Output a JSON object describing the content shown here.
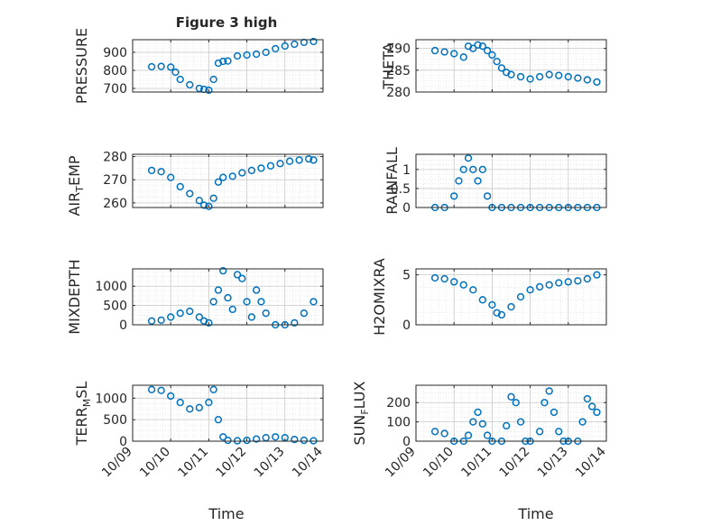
{
  "figure": {
    "title": "Figure 3 high",
    "xlabel": "Time",
    "xticks": [
      "10/09",
      "10/10",
      "10/11",
      "10/12",
      "10/13",
      "10/14"
    ]
  },
  "chart_data": [
    {
      "type": "scatter",
      "ylabel": "PRESSURE",
      "xlim": [
        "10/09",
        "10/14"
      ],
      "ylim": [
        680,
        970
      ],
      "yticks": [
        700,
        800,
        900
      ],
      "grid": true,
      "marker_color": "#0072BD",
      "x": [
        "10/09 12:00",
        "10/09 18:00",
        "10/10 00:00",
        "10/10 03:00",
        "10/10 06:00",
        "10/10 12:00",
        "10/10 18:00",
        "10/10 21:00",
        "10/11 00:00",
        "10/11 03:00",
        "10/11 06:00",
        "10/11 09:00",
        "10/11 12:00",
        "10/11 18:00",
        "10/12 00:00",
        "10/12 06:00",
        "10/12 12:00",
        "10/12 18:00",
        "10/13 00:00",
        "10/13 06:00",
        "10/13 12:00",
        "10/13 18:00"
      ],
      "y": [
        820,
        822,
        818,
        790,
        750,
        720,
        700,
        695,
        690,
        750,
        840,
        850,
        852,
        880,
        885,
        890,
        900,
        920,
        935,
        945,
        955,
        960
      ]
    },
    {
      "type": "scatter",
      "ylabel": "THETA",
      "xlim": [
        "10/09",
        "10/14"
      ],
      "ylim": [
        280,
        292
      ],
      "yticks": [
        280,
        285,
        290
      ],
      "grid": true,
      "marker_color": "#0072BD",
      "x": [
        "10/09 12:00",
        "10/09 18:00",
        "10/10 00:00",
        "10/10 06:00",
        "10/10 09:00",
        "10/10 12:00",
        "10/10 15:00",
        "10/10 18:00",
        "10/10 21:00",
        "10/11 00:00",
        "10/11 03:00",
        "10/11 06:00",
        "10/11 09:00",
        "10/11 12:00",
        "10/11 18:00",
        "10/12 00:00",
        "10/12 06:00",
        "10/12 12:00",
        "10/12 18:00",
        "10/13 00:00",
        "10/13 06:00",
        "10/13 12:00",
        "10/13 18:00"
      ],
      "y": [
        289.5,
        289.2,
        288.8,
        288.0,
        290.5,
        290.0,
        290.8,
        290.5,
        289.5,
        288.5,
        287.0,
        285.5,
        284.5,
        284.0,
        283.5,
        283.0,
        283.5,
        284.0,
        283.8,
        283.5,
        283.2,
        282.8,
        282.3
      ]
    },
    {
      "type": "scatter",
      "ylabel": "AIR_TEMP",
      "xlim": [
        "10/09",
        "10/14"
      ],
      "ylim": [
        258,
        281
      ],
      "yticks": [
        260,
        270,
        280
      ],
      "grid": true,
      "marker_color": "#0072BD",
      "x": [
        "10/09 12:00",
        "10/09 18:00",
        "10/10 00:00",
        "10/10 06:00",
        "10/10 12:00",
        "10/10 18:00",
        "10/10 21:00",
        "10/11 00:00",
        "10/11 03:00",
        "10/11 06:00",
        "10/11 09:00",
        "10/11 15:00",
        "10/11 21:00",
        "10/12 03:00",
        "10/12 09:00",
        "10/12 15:00",
        "10/12 21:00",
        "10/13 03:00",
        "10/13 09:00",
        "10/13 15:00",
        "10/13 18:00"
      ],
      "y": [
        274,
        273.5,
        271,
        267,
        264,
        261,
        259,
        258.5,
        262,
        269,
        271,
        271.5,
        273,
        274,
        275,
        276,
        277,
        278,
        278.5,
        279,
        278.5
      ]
    },
    {
      "type": "scatter",
      "ylabel": "RAINFALL",
      "xlim": [
        "10/09",
        "10/14"
      ],
      "ylim": [
        0,
        1.4
      ],
      "yticks": [
        0,
        0.5,
        1
      ],
      "ytick_labels": [
        "0",
        "0.5",
        "1"
      ],
      "grid": true,
      "marker_color": "#0072BD",
      "x": [
        "10/09 12:00",
        "10/09 18:00",
        "10/10 00:00",
        "10/10 03:00",
        "10/10 06:00",
        "10/10 09:00",
        "10/10 12:00",
        "10/10 15:00",
        "10/10 18:00",
        "10/10 21:00",
        "10/11 00:00",
        "10/11 06:00",
        "10/11 12:00",
        "10/11 18:00",
        "10/12 00:00",
        "10/12 06:00",
        "10/12 12:00",
        "10/12 18:00",
        "10/13 00:00",
        "10/13 06:00",
        "10/13 12:00",
        "10/13 18:00"
      ],
      "y": [
        0,
        0,
        0.3,
        0.7,
        1.0,
        1.3,
        1.0,
        0.7,
        1.0,
        0.3,
        0,
        0,
        0,
        0,
        0,
        0,
        0,
        0,
        0,
        0,
        0,
        0
      ]
    },
    {
      "type": "scatter",
      "ylabel": "MIXDEPTH",
      "xlim": [
        "10/09",
        "10/14"
      ],
      "ylim": [
        0,
        1450
      ],
      "yticks": [
        0,
        500,
        1000
      ],
      "grid": true,
      "marker_color": "#0072BD",
      "x": [
        "10/09 12:00",
        "10/09 18:00",
        "10/10 00:00",
        "10/10 06:00",
        "10/10 12:00",
        "10/10 18:00",
        "10/10 21:00",
        "10/11 00:00",
        "10/11 03:00",
        "10/11 06:00",
        "10/11 09:00",
        "10/11 12:00",
        "10/11 15:00",
        "10/11 18:00",
        "10/11 21:00",
        "10/12 00:00",
        "10/12 03:00",
        "10/12 06:00",
        "10/12 09:00",
        "10/12 12:00",
        "10/12 18:00",
        "10/13 00:00",
        "10/13 06:00",
        "10/13 12:00",
        "10/13 18:00"
      ],
      "y": [
        100,
        120,
        200,
        300,
        350,
        200,
        100,
        50,
        600,
        900,
        1400,
        700,
        400,
        1300,
        1200,
        600,
        200,
        900,
        600,
        300,
        0,
        0,
        50,
        300,
        600
      ]
    },
    {
      "type": "scatter",
      "ylabel": "H2OMIXRA",
      "xlim": [
        "10/09",
        "10/14"
      ],
      "ylim": [
        0,
        5.6
      ],
      "yticks": [
        0,
        5
      ],
      "grid": true,
      "marker_color": "#0072BD",
      "x": [
        "10/09 12:00",
        "10/09 18:00",
        "10/10 00:00",
        "10/10 06:00",
        "10/10 12:00",
        "10/10 18:00",
        "10/11 00:00",
        "10/11 03:00",
        "10/11 06:00",
        "10/11 12:00",
        "10/11 18:00",
        "10/12 00:00",
        "10/12 06:00",
        "10/12 12:00",
        "10/12 18:00",
        "10/13 00:00",
        "10/13 06:00",
        "10/13 12:00",
        "10/13 18:00"
      ],
      "y": [
        4.7,
        4.6,
        4.3,
        4.0,
        3.5,
        2.5,
        2.0,
        1.2,
        1.0,
        1.8,
        2.8,
        3.5,
        3.8,
        4.0,
        4.2,
        4.3,
        4.4,
        4.6,
        5.0
      ]
    },
    {
      "type": "scatter",
      "ylabel": "TERR_MSL",
      "xlim": [
        "10/09",
        "10/14"
      ],
      "ylim": [
        0,
        1300
      ],
      "yticks": [
        0,
        500,
        1000
      ],
      "grid": true,
      "marker_color": "#0072BD",
      "x": [
        "10/09 12:00",
        "10/09 18:00",
        "10/10 00:00",
        "10/10 06:00",
        "10/10 12:00",
        "10/10 18:00",
        "10/11 00:00",
        "10/11 03:00",
        "10/11 06:00",
        "10/11 09:00",
        "10/11 12:00",
        "10/11 18:00",
        "10/12 00:00",
        "10/12 06:00",
        "10/12 12:00",
        "10/12 18:00",
        "10/13 00:00",
        "10/13 06:00",
        "10/13 12:00",
        "10/13 18:00"
      ],
      "y": [
        1200,
        1180,
        1050,
        900,
        750,
        780,
        900,
        1200,
        500,
        100,
        20,
        10,
        20,
        50,
        80,
        100,
        80,
        40,
        20,
        10
      ]
    },
    {
      "type": "scatter",
      "ylabel": "SUN_FLUX",
      "xlim": [
        "10/09",
        "10/14"
      ],
      "ylim": [
        0,
        290
      ],
      "yticks": [
        0,
        100,
        200
      ],
      "grid": true,
      "marker_color": "#0072BD",
      "x": [
        "10/09 12:00",
        "10/09 18:00",
        "10/10 00:00",
        "10/10 06:00",
        "10/10 09:00",
        "10/10 12:00",
        "10/10 15:00",
        "10/10 18:00",
        "10/10 21:00",
        "10/11 00:00",
        "10/11 06:00",
        "10/11 09:00",
        "10/11 12:00",
        "10/11 15:00",
        "10/11 18:00",
        "10/11 21:00",
        "10/12 00:00",
        "10/12 06:00",
        "10/12 09:00",
        "10/12 12:00",
        "10/12 15:00",
        "10/12 18:00",
        "10/12 21:00",
        "10/13 00:00",
        "10/13 06:00",
        "10/13 09:00",
        "10/13 12:00",
        "10/13 15:00",
        "10/13 18:00"
      ],
      "y": [
        50,
        40,
        0,
        0,
        30,
        100,
        150,
        90,
        30,
        0,
        0,
        80,
        230,
        200,
        100,
        0,
        0,
        50,
        200,
        260,
        150,
        50,
        0,
        0,
        0,
        100,
        220,
        180,
        150
      ]
    }
  ]
}
